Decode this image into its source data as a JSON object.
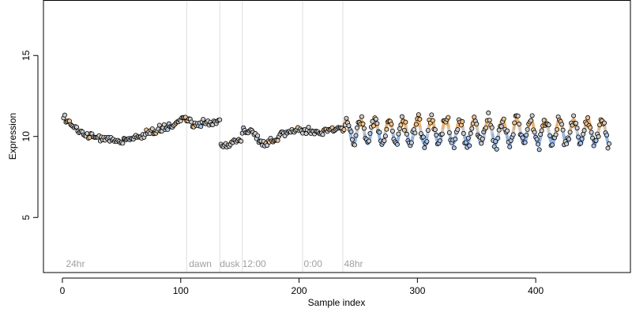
{
  "chart_data": {
    "type": "scatter",
    "title": "",
    "xlabel": "Sample index",
    "ylabel": "Expression",
    "xlim": [
      -16,
      480
    ],
    "ylim": [
      1.6,
      18.4
    ],
    "x_ticks": [
      0,
      100,
      200,
      300,
      400
    ],
    "y_ticks": [
      5,
      10,
      15
    ],
    "grid": false,
    "legend": "none",
    "boundaries": [
      105,
      133,
      152,
      203,
      237
    ],
    "region_labels": [
      {
        "x": 3,
        "text": "24hr"
      },
      {
        "x": 107,
        "text": "dawn"
      },
      {
        "x": 133,
        "text": "dusk"
      },
      {
        "x": 152,
        "text": "12:00"
      },
      {
        "x": 204,
        "text": "0:00"
      },
      {
        "x": 238,
        "text": "48hr"
      }
    ],
    "colors": {
      "point_fill": "#cccccc",
      "point_stroke": "#000000",
      "peak_fill": "#f2c188",
      "trough_fill": "#a9c4ea",
      "fit_orange": "#e8b070",
      "fit_blue": "#8fb0e0",
      "fit_grey": "#c8c8c8",
      "boundary": "#dddddd"
    },
    "segments": [
      {
        "name": "24hr",
        "x0": 1,
        "x1": 104,
        "type": "smooth",
        "knots": [
          [
            1,
            11.1
          ],
          [
            10,
            10.6
          ],
          [
            20,
            10.1
          ],
          [
            35,
            9.9
          ],
          [
            50,
            9.7
          ],
          [
            60,
            9.9
          ],
          [
            75,
            10.3
          ],
          [
            90,
            10.6
          ],
          [
            104,
            11.1
          ]
        ]
      },
      {
        "name": "dawn",
        "x0": 105,
        "x1": 133,
        "type": "smooth",
        "knots": [
          [
            105,
            10.9
          ],
          [
            115,
            10.7
          ],
          [
            125,
            10.9
          ],
          [
            133,
            11.0
          ]
        ]
      },
      {
        "name": "dusk",
        "x0": 134,
        "x1": 151,
        "type": "smooth",
        "knots": [
          [
            134,
            9.4
          ],
          [
            141,
            9.5
          ],
          [
            146,
            9.7
          ],
          [
            151,
            9.8
          ]
        ]
      },
      {
        "name": "12:00",
        "x0": 152,
        "x1": 202,
        "type": "smooth",
        "knots": [
          [
            152,
            10.4
          ],
          [
            160,
            10.3
          ],
          [
            170,
            9.6
          ],
          [
            178,
            9.7
          ],
          [
            186,
            10.2
          ],
          [
            195,
            10.4
          ],
          [
            202,
            10.4
          ]
        ]
      },
      {
        "name": "0:00",
        "x0": 203,
        "x1": 236,
        "type": "smooth",
        "knots": [
          [
            203,
            10.3
          ],
          [
            215,
            10.2
          ],
          [
            225,
            10.4
          ],
          [
            236,
            10.5
          ]
        ]
      },
      {
        "name": "48hr",
        "x0": 237,
        "x1": 462,
        "type": "oscillation",
        "base": 10.3,
        "amp": 0.75,
        "period": 12,
        "phase": 237
      }
    ]
  }
}
